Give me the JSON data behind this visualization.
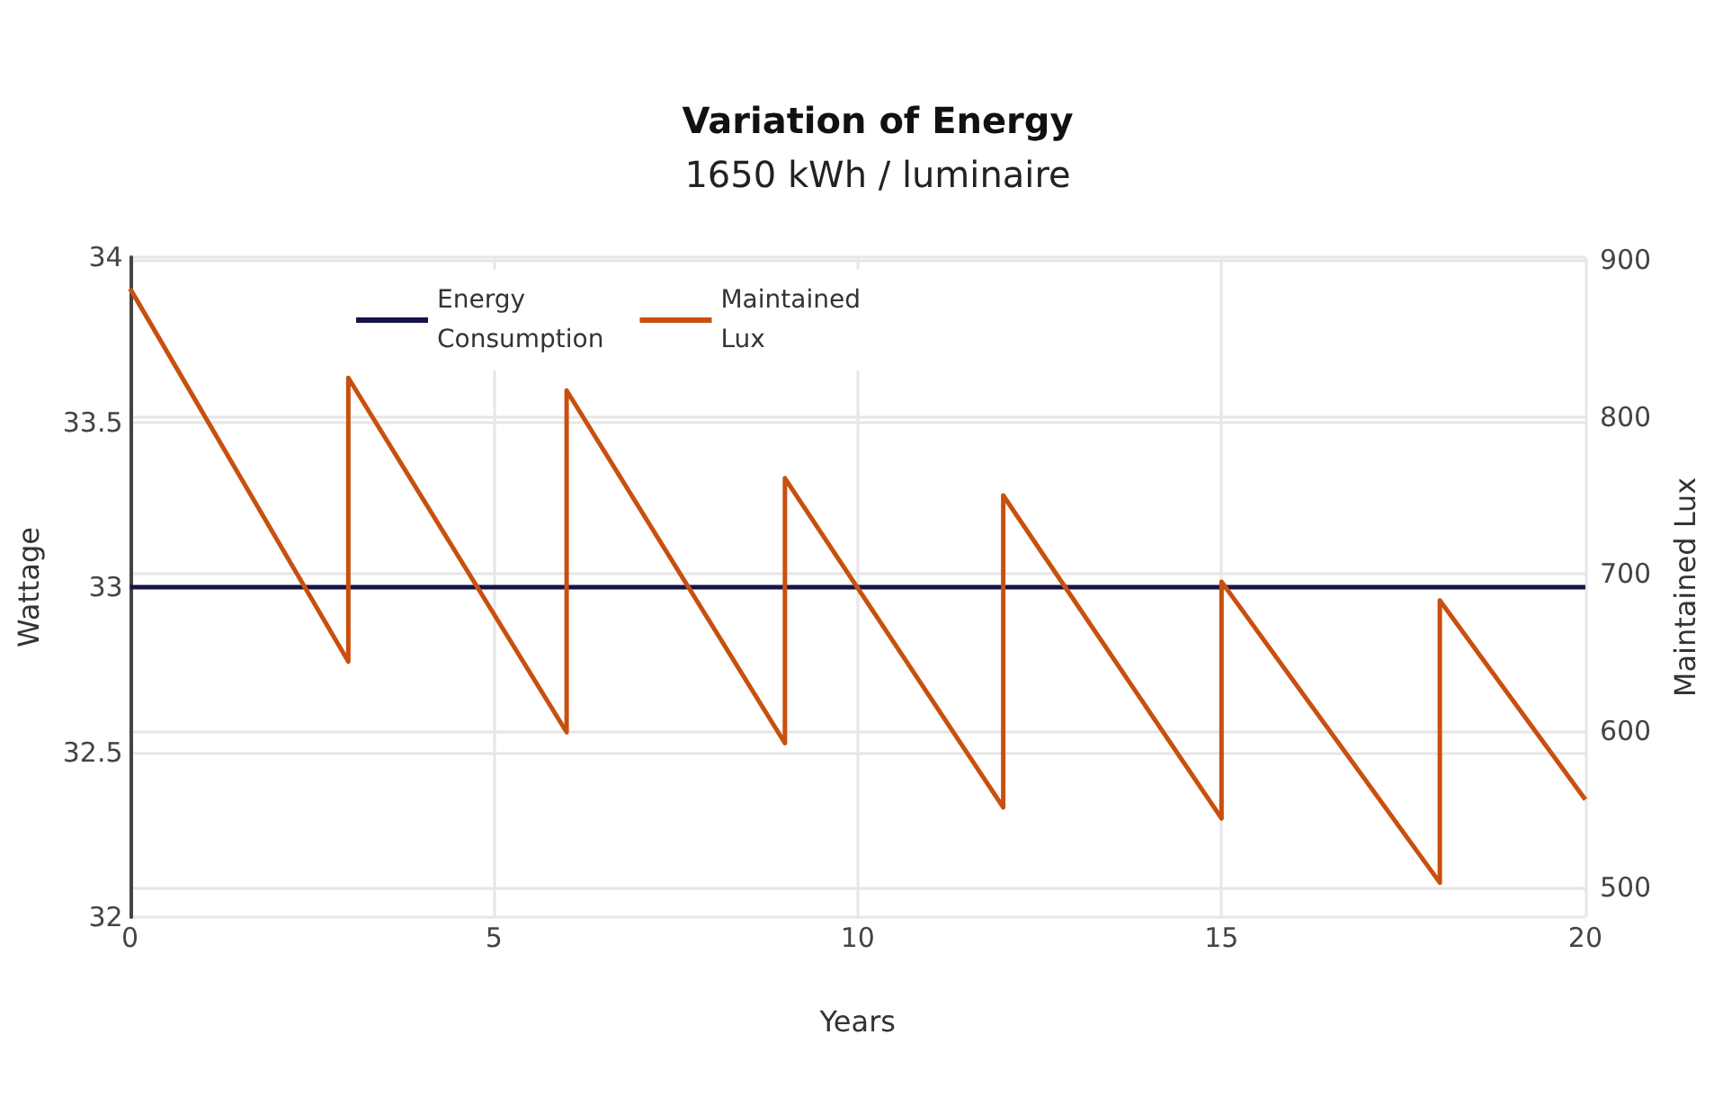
{
  "chart_data": {
    "type": "line",
    "title": "Variation of Energy",
    "subtitle": "1650 kWh / luminaire",
    "xlabel": "Years",
    "ylabel": "Wattage",
    "y2label": "Maintained Lux",
    "series": [
      {
        "name": "Energy Consumption",
        "color": "#14144a",
        "x": [
          0,
          20
        ],
        "values": [
          33,
          33
        ]
      },
      {
        "name": "Maintained Lux",
        "color": "#c8500f",
        "axis": "y2",
        "x": [
          0,
          3,
          3,
          6,
          6,
          9,
          9,
          12,
          12,
          15,
          15,
          18,
          18,
          20
        ],
        "values": [
          882,
          644,
          825,
          599,
          817,
          592,
          761,
          551,
          750,
          544,
          695,
          503,
          683,
          556
        ]
      }
    ],
    "xlim": [
      0,
      20
    ],
    "xticks": [
      0,
      5,
      10,
      15,
      20
    ],
    "ylim": [
      32,
      34
    ],
    "yticks": [
      32,
      32.5,
      33,
      33.5,
      34
    ],
    "y2lim": [
      481,
      902
    ],
    "y2ticks": [
      500,
      600,
      700,
      800,
      900
    ],
    "grid": true,
    "legend": "top left",
    "marker": "none",
    "line_style": "solid"
  }
}
